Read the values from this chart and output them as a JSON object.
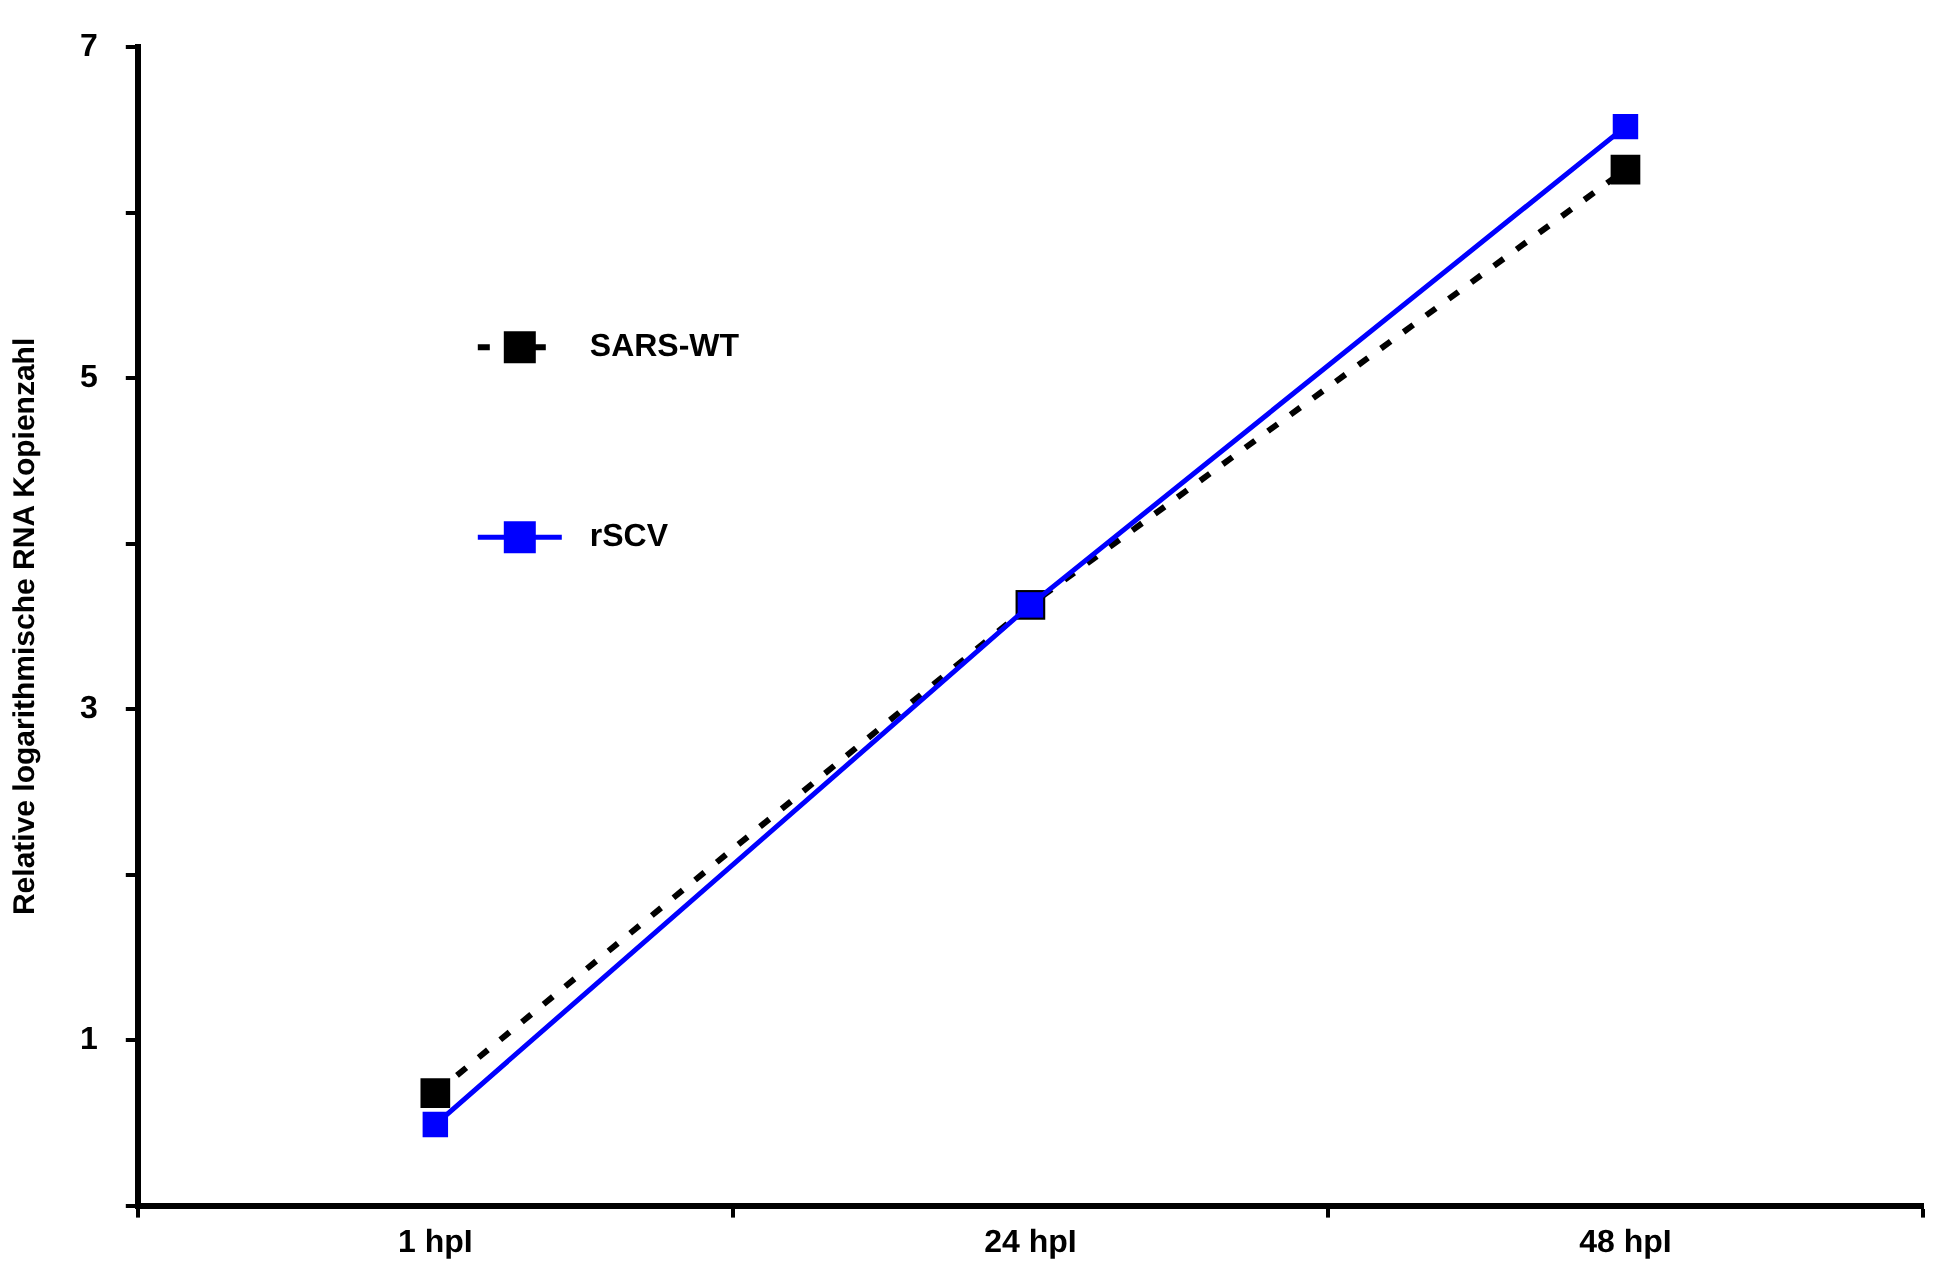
{
  "chart_data": {
    "type": "line",
    "ylabel": "Relative logarithmische RNA Kopienzahl",
    "categories": [
      "1 hpI",
      "24 hpI",
      "48 hpI"
    ],
    "series": [
      {
        "name": "SARS-WT",
        "color": "#000000",
        "values": [
          0.68,
          3.63,
          6.26
        ],
        "line_style": "dashed"
      },
      {
        "name": "rSCV",
        "color": "#0000ff",
        "values": [
          0.49,
          3.63,
          6.52
        ],
        "line_style": "solid"
      }
    ],
    "ylim": [
      0,
      7
    ],
    "yticks": [
      {
        "value": 0,
        "label": null
      },
      1,
      {
        "value": 2,
        "label": null
      },
      3,
      {
        "value": 4,
        "label": null
      },
      5,
      {
        "value": 6,
        "label": null
      },
      7
    ],
    "grid": false,
    "legend": "top left",
    "marker": "square"
  }
}
